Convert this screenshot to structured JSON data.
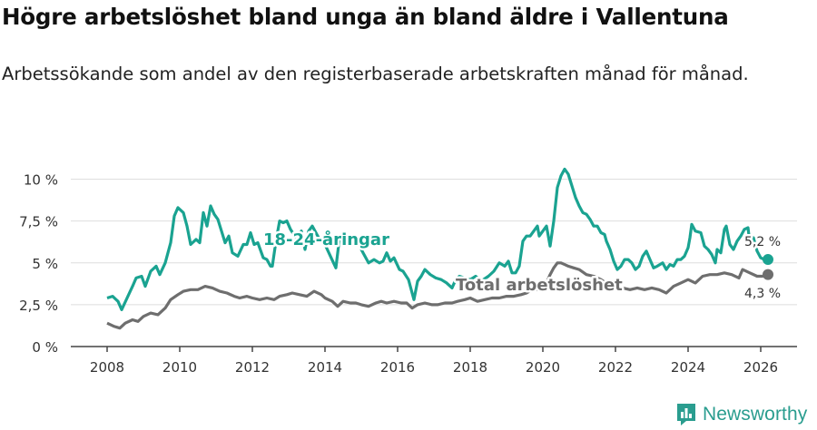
{
  "title": "Högre arbetslöshet bland unga än bland äldre i Vallentuna",
  "subtitle": "Arbetssökande som andel av den registerbaserade arbetskraften månad för månad.",
  "brand": {
    "name": "Newsworthy",
    "icon": "newsworthy-logo-icon",
    "color": "#2a9d8f"
  },
  "chart_data": {
    "type": "line",
    "x_range": [
      2007.0,
      2027.0
    ],
    "ylim": [
      0,
      11
    ],
    "x_ticks": [
      2008,
      2010,
      2012,
      2014,
      2016,
      2018,
      2020,
      2022,
      2024,
      2026
    ],
    "x_tick_labels": [
      "2008",
      "2010",
      "2012",
      "2014",
      "2016",
      "2018",
      "2020",
      "2022",
      "2024",
      "2026"
    ],
    "y_ticks": [
      0,
      2.5,
      5,
      7.5,
      10
    ],
    "y_tick_labels": [
      "0 %",
      "2,5 %",
      "5 %",
      "7,5 %",
      "10 %"
    ],
    "grid": true,
    "series": [
      {
        "name": "18-24-åringar",
        "color": "#1aa391",
        "end_label": "5,2 %",
        "points": [
          [
            2008.0,
            2.9
          ],
          [
            2008.15,
            3.0
          ],
          [
            2008.3,
            2.7
          ],
          [
            2008.4,
            2.2
          ],
          [
            2008.55,
            2.9
          ],
          [
            2008.7,
            3.6
          ],
          [
            2008.8,
            4.1
          ],
          [
            2008.95,
            4.2
          ],
          [
            2009.05,
            3.6
          ],
          [
            2009.2,
            4.5
          ],
          [
            2009.35,
            4.8
          ],
          [
            2009.45,
            4.3
          ],
          [
            2009.6,
            5.0
          ],
          [
            2009.75,
            6.2
          ],
          [
            2009.85,
            7.8
          ],
          [
            2009.95,
            8.3
          ],
          [
            2010.1,
            8.0
          ],
          [
            2010.2,
            7.2
          ],
          [
            2010.3,
            6.1
          ],
          [
            2010.45,
            6.4
          ],
          [
            2010.55,
            6.2
          ],
          [
            2010.65,
            8.0
          ],
          [
            2010.75,
            7.2
          ],
          [
            2010.85,
            8.4
          ],
          [
            2010.95,
            7.9
          ],
          [
            2011.05,
            7.6
          ],
          [
            2011.15,
            6.9
          ],
          [
            2011.25,
            6.2
          ],
          [
            2011.35,
            6.6
          ],
          [
            2011.45,
            5.6
          ],
          [
            2011.6,
            5.4
          ],
          [
            2011.75,
            6.1
          ],
          [
            2011.85,
            6.1
          ],
          [
            2011.95,
            6.8
          ],
          [
            2012.05,
            6.1
          ],
          [
            2012.15,
            6.2
          ],
          [
            2012.3,
            5.3
          ],
          [
            2012.4,
            5.2
          ],
          [
            2012.5,
            4.8
          ],
          [
            2012.55,
            4.8
          ],
          [
            2012.65,
            6.3
          ],
          [
            2012.75,
            7.5
          ],
          [
            2012.85,
            7.4
          ],
          [
            2012.95,
            7.5
          ],
          [
            2013.05,
            7.0
          ],
          [
            2013.2,
            6.5
          ],
          [
            2013.35,
            6.9
          ],
          [
            2013.45,
            5.8
          ],
          [
            2013.55,
            6.9
          ],
          [
            2013.65,
            7.2
          ],
          [
            2013.75,
            6.8
          ],
          [
            2013.85,
            6.4
          ],
          [
            2014.0,
            6.1
          ],
          [
            2014.15,
            5.4
          ],
          [
            2014.3,
            4.7
          ],
          [
            2014.4,
            6.5
          ],
          [
            2014.5,
            6.2
          ],
          [
            2014.6,
            6.6
          ],
          [
            2014.7,
            6.2
          ],
          [
            2014.8,
            6.3
          ],
          [
            2014.95,
            6.0
          ],
          [
            2015.05,
            5.6
          ],
          [
            2015.2,
            5.0
          ],
          [
            2015.35,
            5.2
          ],
          [
            2015.5,
            5.0
          ],
          [
            2015.6,
            5.1
          ],
          [
            2015.7,
            5.6
          ],
          [
            2015.8,
            5.1
          ],
          [
            2015.9,
            5.3
          ],
          [
            2016.05,
            4.6
          ],
          [
            2016.15,
            4.5
          ],
          [
            2016.3,
            4.0
          ],
          [
            2016.4,
            3.2
          ],
          [
            2016.45,
            2.8
          ],
          [
            2016.55,
            3.9
          ],
          [
            2016.65,
            4.2
          ],
          [
            2016.75,
            4.6
          ],
          [
            2016.9,
            4.3
          ],
          [
            2017.05,
            4.1
          ],
          [
            2017.2,
            4.0
          ],
          [
            2017.35,
            3.8
          ],
          [
            2017.5,
            3.5
          ],
          [
            2017.6,
            4.0
          ],
          [
            2017.7,
            4.2
          ],
          [
            2017.85,
            4.1
          ],
          [
            2018.0,
            4.0
          ],
          [
            2018.15,
            4.2
          ],
          [
            2018.3,
            3.9
          ],
          [
            2018.5,
            4.2
          ],
          [
            2018.65,
            4.5
          ],
          [
            2018.8,
            5.0
          ],
          [
            2018.95,
            4.8
          ],
          [
            2019.05,
            5.1
          ],
          [
            2019.15,
            4.4
          ],
          [
            2019.25,
            4.4
          ],
          [
            2019.35,
            4.8
          ],
          [
            2019.45,
            6.3
          ],
          [
            2019.55,
            6.6
          ],
          [
            2019.65,
            6.6
          ],
          [
            2019.75,
            6.9
          ],
          [
            2019.85,
            7.2
          ],
          [
            2019.9,
            6.6
          ],
          [
            2020.0,
            6.9
          ],
          [
            2020.1,
            7.2
          ],
          [
            2020.15,
            6.6
          ],
          [
            2020.2,
            6.0
          ],
          [
            2020.3,
            7.5
          ],
          [
            2020.4,
            9.5
          ],
          [
            2020.5,
            10.2
          ],
          [
            2020.6,
            10.6
          ],
          [
            2020.7,
            10.3
          ],
          [
            2020.8,
            9.6
          ],
          [
            2020.9,
            8.9
          ],
          [
            2021.0,
            8.4
          ],
          [
            2021.1,
            8.0
          ],
          [
            2021.2,
            7.9
          ],
          [
            2021.3,
            7.6
          ],
          [
            2021.4,
            7.2
          ],
          [
            2021.5,
            7.2
          ],
          [
            2021.6,
            6.8
          ],
          [
            2021.7,
            6.7
          ],
          [
            2021.75,
            6.3
          ],
          [
            2021.85,
            5.8
          ],
          [
            2021.95,
            5.1
          ],
          [
            2022.05,
            4.6
          ],
          [
            2022.15,
            4.8
          ],
          [
            2022.25,
            5.2
          ],
          [
            2022.35,
            5.2
          ],
          [
            2022.45,
            5.0
          ],
          [
            2022.55,
            4.6
          ],
          [
            2022.65,
            4.8
          ],
          [
            2022.75,
            5.4
          ],
          [
            2022.85,
            5.7
          ],
          [
            2022.95,
            5.2
          ],
          [
            2023.05,
            4.7
          ],
          [
            2023.15,
            4.8
          ],
          [
            2023.3,
            5.0
          ],
          [
            2023.4,
            4.6
          ],
          [
            2023.5,
            4.9
          ],
          [
            2023.6,
            4.8
          ],
          [
            2023.7,
            5.2
          ],
          [
            2023.8,
            5.2
          ],
          [
            2023.9,
            5.4
          ],
          [
            2024.0,
            5.9
          ],
          [
            2024.05,
            6.5
          ],
          [
            2024.1,
            7.3
          ],
          [
            2024.2,
            6.9
          ],
          [
            2024.35,
            6.8
          ],
          [
            2024.45,
            6.0
          ],
          [
            2024.55,
            5.8
          ],
          [
            2024.65,
            5.5
          ],
          [
            2024.75,
            5.0
          ],
          [
            2024.8,
            5.8
          ],
          [
            2024.9,
            5.6
          ],
          [
            2025.0,
            7.0
          ],
          [
            2025.05,
            7.2
          ],
          [
            2025.15,
            6.1
          ],
          [
            2025.25,
            5.8
          ],
          [
            2025.35,
            6.3
          ],
          [
            2025.45,
            6.6
          ],
          [
            2025.55,
            7.0
          ],
          [
            2025.65,
            7.1
          ],
          [
            2025.7,
            6.2
          ],
          [
            2025.8,
            6.5
          ],
          [
            2025.9,
            5.7
          ],
          [
            2026.0,
            5.3
          ],
          [
            2026.1,
            5.2
          ],
          [
            2026.2,
            5.2
          ]
        ]
      },
      {
        "name": "Total arbetslöshet",
        "color": "#6e6e6e",
        "end_label": "4,3 %",
        "points": [
          [
            2008.0,
            1.4
          ],
          [
            2008.2,
            1.2
          ],
          [
            2008.35,
            1.1
          ],
          [
            2008.5,
            1.4
          ],
          [
            2008.7,
            1.6
          ],
          [
            2008.85,
            1.5
          ],
          [
            2009.0,
            1.8
          ],
          [
            2009.2,
            2.0
          ],
          [
            2009.4,
            1.9
          ],
          [
            2009.6,
            2.3
          ],
          [
            2009.75,
            2.8
          ],
          [
            2009.95,
            3.1
          ],
          [
            2010.1,
            3.3
          ],
          [
            2010.3,
            3.4
          ],
          [
            2010.5,
            3.4
          ],
          [
            2010.7,
            3.6
          ],
          [
            2010.9,
            3.5
          ],
          [
            2011.1,
            3.3
          ],
          [
            2011.3,
            3.2
          ],
          [
            2011.5,
            3.0
          ],
          [
            2011.65,
            2.9
          ],
          [
            2011.85,
            3.0
          ],
          [
            2012.0,
            2.9
          ],
          [
            2012.2,
            2.8
          ],
          [
            2012.4,
            2.9
          ],
          [
            2012.6,
            2.8
          ],
          [
            2012.75,
            3.0
          ],
          [
            2012.95,
            3.1
          ],
          [
            2013.1,
            3.2
          ],
          [
            2013.3,
            3.1
          ],
          [
            2013.5,
            3.0
          ],
          [
            2013.7,
            3.3
          ],
          [
            2013.9,
            3.1
          ],
          [
            2014.0,
            2.9
          ],
          [
            2014.2,
            2.7
          ],
          [
            2014.35,
            2.4
          ],
          [
            2014.5,
            2.7
          ],
          [
            2014.7,
            2.6
          ],
          [
            2014.85,
            2.6
          ],
          [
            2015.0,
            2.5
          ],
          [
            2015.2,
            2.4
          ],
          [
            2015.4,
            2.6
          ],
          [
            2015.55,
            2.7
          ],
          [
            2015.7,
            2.6
          ],
          [
            2015.9,
            2.7
          ],
          [
            2016.1,
            2.6
          ],
          [
            2016.25,
            2.6
          ],
          [
            2016.4,
            2.3
          ],
          [
            2016.55,
            2.5
          ],
          [
            2016.75,
            2.6
          ],
          [
            2016.95,
            2.5
          ],
          [
            2017.1,
            2.5
          ],
          [
            2017.3,
            2.6
          ],
          [
            2017.5,
            2.6
          ],
          [
            2017.65,
            2.7
          ],
          [
            2017.85,
            2.8
          ],
          [
            2018.0,
            2.9
          ],
          [
            2018.2,
            2.7
          ],
          [
            2018.4,
            2.8
          ],
          [
            2018.6,
            2.9
          ],
          [
            2018.8,
            2.9
          ],
          [
            2019.0,
            3.0
          ],
          [
            2019.2,
            3.0
          ],
          [
            2019.4,
            3.1
          ],
          [
            2019.55,
            3.2
          ],
          [
            2019.7,
            3.4
          ],
          [
            2019.85,
            3.4
          ],
          [
            2020.0,
            3.5
          ],
          [
            2020.1,
            3.8
          ],
          [
            2020.2,
            4.3
          ],
          [
            2020.3,
            4.7
          ],
          [
            2020.4,
            5.0
          ],
          [
            2020.5,
            5.0
          ],
          [
            2020.6,
            4.9
          ],
          [
            2020.7,
            4.8
          ],
          [
            2020.85,
            4.7
          ],
          [
            2021.0,
            4.6
          ],
          [
            2021.2,
            4.3
          ],
          [
            2021.4,
            4.2
          ],
          [
            2021.6,
            4.0
          ],
          [
            2021.8,
            3.7
          ],
          [
            2022.0,
            3.5
          ],
          [
            2022.2,
            3.5
          ],
          [
            2022.4,
            3.4
          ],
          [
            2022.6,
            3.5
          ],
          [
            2022.8,
            3.4
          ],
          [
            2023.0,
            3.5
          ],
          [
            2023.2,
            3.4
          ],
          [
            2023.4,
            3.2
          ],
          [
            2023.6,
            3.6
          ],
          [
            2023.8,
            3.8
          ],
          [
            2024.0,
            4.0
          ],
          [
            2024.2,
            3.8
          ],
          [
            2024.4,
            4.2
          ],
          [
            2024.6,
            4.3
          ],
          [
            2024.8,
            4.3
          ],
          [
            2025.0,
            4.4
          ],
          [
            2025.2,
            4.3
          ],
          [
            2025.4,
            4.1
          ],
          [
            2025.5,
            4.6
          ],
          [
            2025.7,
            4.4
          ],
          [
            2025.9,
            4.2
          ],
          [
            2026.05,
            4.2
          ],
          [
            2026.2,
            4.3
          ]
        ]
      }
    ]
  }
}
